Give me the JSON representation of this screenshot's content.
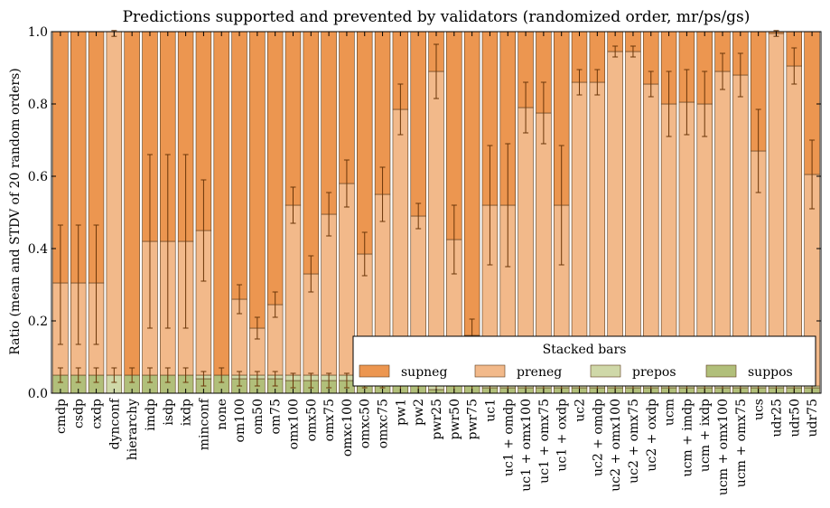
{
  "colors": {
    "supneg": "#ec9650",
    "preneg": "#f2b98a",
    "prepos": "#cfd8a8",
    "suppos": "#b1bf7a",
    "error": "#6a3508",
    "frame": "#000000"
  },
  "chart_data": {
    "type": "bar",
    "stacked": true,
    "title": "Predictions supported and prevented by validators (randomized order, mr/ps/gs)",
    "xlabel": "",
    "ylabel": "Ratio (mean and STDV of 20 random orders)",
    "ylim": [
      0,
      1
    ],
    "yticks": [
      "0.0",
      "0.2",
      "0.4",
      "0.6",
      "0.8",
      "1.0"
    ],
    "legend": {
      "title": "Stacked bars",
      "placement": "bottom-right",
      "entries": [
        "supneg",
        "preneg",
        "prepos",
        "suppos"
      ]
    },
    "categories": [
      "cmdp",
      "csdp",
      "cxdp",
      "dynconf",
      "hierarchy",
      "imdp",
      "isdp",
      "ixdp",
      "minconf",
      "none",
      "om100",
      "om50",
      "om75",
      "omx100",
      "omx50",
      "omx75",
      "omxc100",
      "omxc50",
      "omxc75",
      "pw1",
      "pw2",
      "pwr25",
      "pwr50",
      "pwr75",
      "uc1",
      "uc1 + omdp",
      "uc1 + omx100",
      "uc1 + omx75",
      "uc1 + oxdp",
      "uc2",
      "uc2 + omdp",
      "uc2 + omx100",
      "uc2 + omx75",
      "uc2 + oxdp",
      "ucm",
      "ucm + imdp",
      "ucm + ixdp",
      "ucm + omx100",
      "ucm + omx75",
      "ucs",
      "udr25",
      "udr50",
      "udr75"
    ],
    "series": [
      {
        "name": "suppos",
        "values": [
          0.05,
          0.05,
          0.05,
          0,
          0.05,
          0.05,
          0.05,
          0.05,
          0.04,
          0.05,
          0.04,
          0.04,
          0.04,
          0.035,
          0.035,
          0.035,
          0.035,
          0.035,
          0.035,
          0.02,
          0.02,
          0.01,
          0.02,
          0.02,
          0.015,
          0.015,
          0.015,
          0.015,
          0.015,
          0.015,
          0.015,
          0.015,
          0.015,
          0.015,
          0.015,
          0.015,
          0.015,
          0.015,
          0.015,
          0.015,
          0.015,
          0.015,
          0.015
        ]
      },
      {
        "name": "prepos",
        "values": [
          0,
          0,
          0,
          0.05,
          0,
          0,
          0,
          0,
          0.01,
          0,
          0.01,
          0.01,
          0.01,
          0.015,
          0.015,
          0.015,
          0.015,
          0.015,
          0.015,
          0.01,
          0.01,
          0.01,
          0.01,
          0.01,
          0.005,
          0.005,
          0.005,
          0.005,
          0.005,
          0.005,
          0.005,
          0.005,
          0.005,
          0.005,
          0.005,
          0.005,
          0.005,
          0.005,
          0.005,
          0.005,
          0.005,
          0.005,
          0.005
        ]
      },
      {
        "name": "preneg",
        "values": [
          0.255,
          0.255,
          0.255,
          0.95,
          0,
          0.37,
          0.37,
          0.37,
          0.4,
          0,
          0.21,
          0.13,
          0.195,
          0.47,
          0.28,
          0.445,
          0.53,
          0.335,
          0.5,
          0.755,
          0.46,
          0.87,
          0.395,
          0.13,
          0.5,
          0.5,
          0.77,
          0.755,
          0.5,
          0.84,
          0.84,
          0.925,
          0.925,
          0.835,
          0.78,
          0.785,
          0.78,
          0.87,
          0.86,
          0.65,
          0.975,
          0.885,
          0.585
        ]
      },
      {
        "name": "supneg",
        "values": [
          0.695,
          0.695,
          0.695,
          0,
          0.95,
          0.58,
          0.58,
          0.58,
          0.55,
          0.95,
          0.74,
          0.82,
          0.755,
          0.48,
          0.67,
          0.505,
          0.42,
          0.615,
          0.45,
          0.215,
          0.51,
          0.11,
          0.575,
          0.84,
          0.48,
          0.48,
          0.21,
          0.225,
          0.48,
          0.14,
          0.14,
          0.055,
          0.055,
          0.145,
          0.2,
          0.195,
          0.2,
          0.11,
          0.12,
          0.33,
          0.005,
          0.095,
          0.395
        ]
      }
    ],
    "errors": [
      {
        "at": [
          0.3,
          0.3,
          0.3,
          0.995,
          1.0,
          0.42,
          0.42,
          0.42,
          0.45,
          1.0,
          0.26,
          0.18,
          0.245,
          0.52,
          0.33,
          0.495,
          0.58,
          0.385,
          0.55,
          0.785,
          0.49,
          0.89,
          0.425,
          0.16,
          0.52,
          0.52,
          0.79,
          0.775,
          0.52,
          0.86,
          0.86,
          0.945,
          0.945,
          0.855,
          0.8,
          0.805,
          0.8,
          0.89,
          0.88,
          0.67,
          0.995,
          0.905,
          0.605
        ],
        "err": [
          0.165,
          0.165,
          0.165,
          0.008,
          0,
          0.24,
          0.24,
          0.24,
          0.14,
          0,
          0.04,
          0.03,
          0.035,
          0.05,
          0.05,
          0.06,
          0.065,
          0.06,
          0.075,
          0.07,
          0.035,
          0.075,
          0.095,
          0.045,
          0.165,
          0.17,
          0.07,
          0.085,
          0.165,
          0.035,
          0.035,
          0.015,
          0.015,
          0.035,
          0.09,
          0.09,
          0.09,
          0.05,
          0.06,
          0.115,
          0.008,
          0.05,
          0.095
        ]
      },
      {
        "at": [
          0.05,
          0.05,
          0.05,
          0.05,
          0.05,
          0.05,
          0.05,
          0.05,
          0.04,
          0.05,
          0.04,
          0.04,
          0.04,
          0.035,
          0.035,
          0.035,
          0.035,
          0.035,
          0.035,
          0.02,
          0.02,
          0.02,
          0.02,
          0.02,
          0.02,
          0.02,
          0.02,
          0.02,
          0.02,
          0.02,
          0.02,
          0.02,
          0.02,
          0.02,
          0.02,
          0.02,
          0.02,
          0.02,
          0.02,
          0.02,
          0.02,
          0.02,
          0.02
        ],
        "err": [
          0.02,
          0.02,
          0.02,
          0.02,
          0.02,
          0.02,
          0.02,
          0.02,
          0.02,
          0.02,
          0.02,
          0.02,
          0.02,
          0.02,
          0.02,
          0.02,
          0.02,
          0.02,
          0.02,
          0.02,
          0.02,
          0.02,
          0.02,
          0.02,
          0.02,
          0.02,
          0.02,
          0.02,
          0.02,
          0.02,
          0.02,
          0.02,
          0.02,
          0.02,
          0.02,
          0.02,
          0.02,
          0.02,
          0.02,
          0.02,
          0.02,
          0.02,
          0.02
        ]
      }
    ]
  }
}
